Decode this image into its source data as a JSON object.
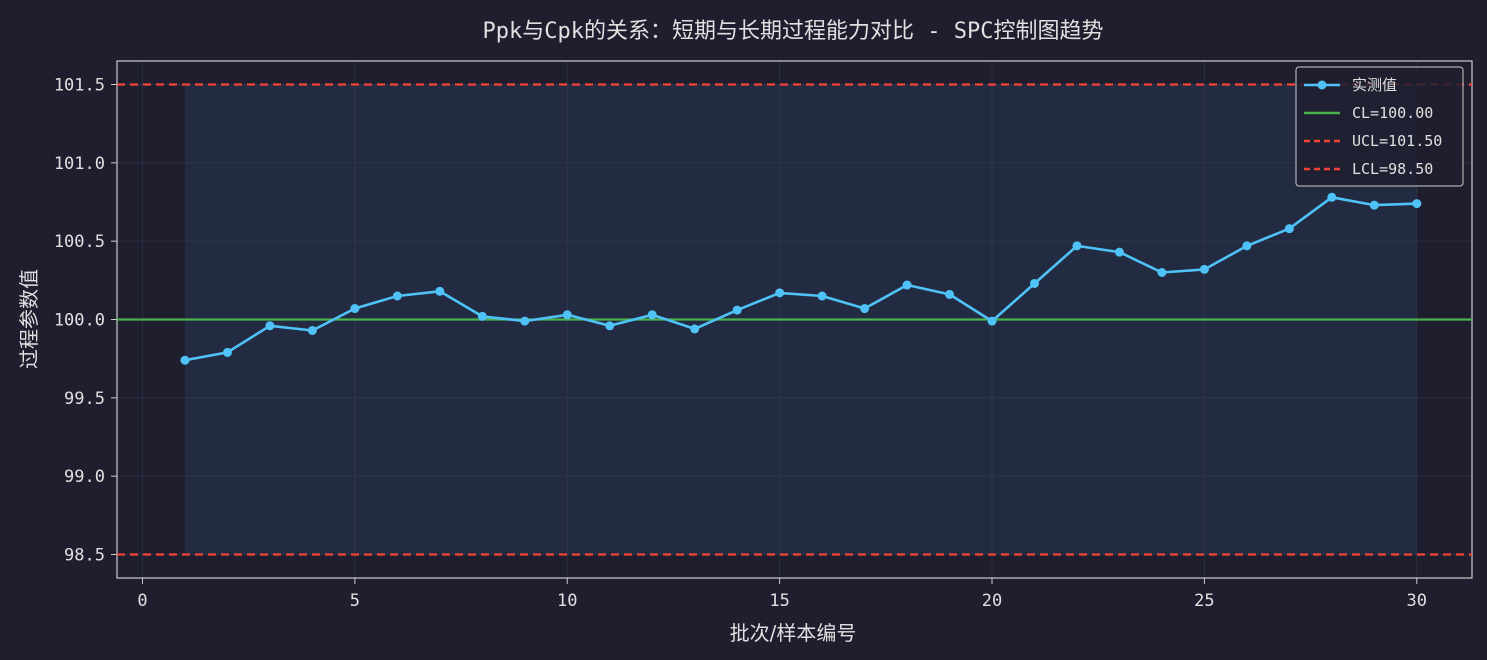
{
  "chart_data": {
    "type": "line",
    "title": "Ppk与Cpk的关系：短期与长期过程能力对比 - SPC控制图趋势",
    "xlabel": "批次/样本编号",
    "ylabel": "过程参数值",
    "xlim": [
      -0.6,
      31.3
    ],
    "ylim": [
      98.35,
      101.65
    ],
    "x_ticks": [
      0,
      5,
      10,
      15,
      20,
      25,
      30
    ],
    "y_ticks": [
      98.5,
      99.0,
      99.5,
      100.0,
      100.5,
      101.0,
      101.5
    ],
    "y_tick_labels": [
      "98.5",
      "99.0",
      "99.5",
      "100.0",
      "100.5",
      "101.0",
      "101.5"
    ],
    "grid": true,
    "legend_position": "top-right",
    "series": [
      {
        "name": "实测值",
        "color": "#4fc3f7",
        "x": [
          1,
          2,
          3,
          4,
          5,
          6,
          7,
          8,
          9,
          10,
          11,
          12,
          13,
          14,
          15,
          16,
          17,
          18,
          19,
          20,
          21,
          22,
          23,
          24,
          25,
          26,
          27,
          28,
          29,
          30
        ],
        "values": [
          99.74,
          99.79,
          99.96,
          99.93,
          100.07,
          100.15,
          100.18,
          100.02,
          99.99,
          100.03,
          99.96,
          100.03,
          99.94,
          100.06,
          100.17,
          100.15,
          100.07,
          100.22,
          100.16,
          99.99,
          100.23,
          100.47,
          100.43,
          100.3,
          100.32,
          100.47,
          100.58,
          100.78,
          100.73,
          100.74
        ]
      }
    ],
    "reference_lines": [
      {
        "name": "CL=100.00",
        "value": 100.0,
        "color": "#4caf50",
        "style": "solid"
      },
      {
        "name": "UCL=101.50",
        "value": 101.5,
        "color": "#f44336",
        "style": "dashed"
      },
      {
        "name": "LCL=98.50",
        "value": 98.5,
        "color": "#f44336",
        "style": "dashed"
      }
    ],
    "colors": {
      "background": "#1e1e2e",
      "zone_fill": "#24304a",
      "axis": "#cccccc",
      "text": "#e0e0e0"
    }
  }
}
